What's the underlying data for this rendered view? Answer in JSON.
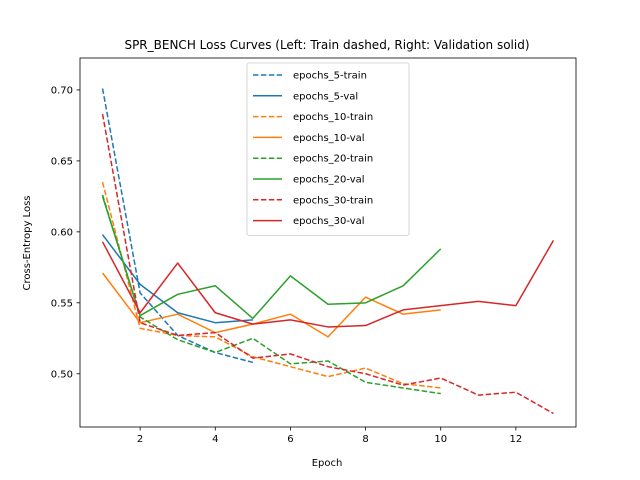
{
  "chart_data": {
    "type": "line",
    "title": "SPR_BENCH Loss Curves (Left: Train dashed, Right: Validation solid)",
    "xlabel": "Epoch",
    "ylabel": "Cross-Entropy Loss",
    "xlim": [
      0.4,
      13.6
    ],
    "ylim": [
      0.4625,
      0.7225
    ],
    "xticks": [
      2,
      4,
      6,
      8,
      10,
      12
    ],
    "yticks": [
      0.5,
      0.55,
      0.6,
      0.65,
      0.7
    ],
    "ytick_labels": [
      "0.50",
      "0.55",
      "0.60",
      "0.65",
      "0.70"
    ],
    "grid": false,
    "legend_position": "top-center",
    "series": [
      {
        "name": "epochs_5-train",
        "color": "#1f77b4",
        "style": "dashed",
        "x": [
          1,
          2,
          3,
          4,
          5
        ],
        "y": [
          0.701,
          0.557,
          0.527,
          0.515,
          0.508
        ]
      },
      {
        "name": "epochs_5-val",
        "color": "#1f77b4",
        "style": "solid",
        "x": [
          1,
          2,
          3,
          4,
          5
        ],
        "y": [
          0.598,
          0.563,
          0.543,
          0.536,
          0.538
        ]
      },
      {
        "name": "epochs_10-train",
        "color": "#ff7f0e",
        "style": "dashed",
        "x": [
          1,
          2,
          3,
          4,
          5,
          6,
          7,
          8,
          9,
          10
        ],
        "y": [
          0.635,
          0.532,
          0.527,
          0.526,
          0.512,
          0.505,
          0.498,
          0.504,
          0.493,
          0.49
        ]
      },
      {
        "name": "epochs_10-val",
        "color": "#ff7f0e",
        "style": "solid",
        "x": [
          1,
          2,
          3,
          4,
          5,
          6,
          7,
          8,
          9,
          10
        ],
        "y": [
          0.571,
          0.536,
          0.542,
          0.529,
          0.535,
          0.542,
          0.526,
          0.554,
          0.542,
          0.545
        ]
      },
      {
        "name": "epochs_20-train",
        "color": "#2ca02c",
        "style": "dashed",
        "x": [
          1,
          2,
          3,
          4,
          5,
          6,
          7,
          8,
          9,
          10
        ],
        "y": [
          0.626,
          0.54,
          0.524,
          0.515,
          0.525,
          0.507,
          0.509,
          0.494,
          0.49,
          0.486
        ]
      },
      {
        "name": "epochs_20-val",
        "color": "#2ca02c",
        "style": "solid",
        "x": [
          1,
          2,
          3,
          4,
          5,
          6,
          7,
          8,
          9,
          10
        ],
        "y": [
          0.625,
          0.541,
          0.556,
          0.562,
          0.539,
          0.569,
          0.549,
          0.55,
          0.562,
          0.588
        ]
      },
      {
        "name": "epochs_30-train",
        "color": "#d62728",
        "style": "dashed",
        "x": [
          1,
          2,
          3,
          4,
          5,
          6,
          7,
          8,
          9,
          10,
          11,
          12,
          13
        ],
        "y": [
          0.683,
          0.536,
          0.527,
          0.529,
          0.511,
          0.514,
          0.505,
          0.5,
          0.492,
          0.497,
          0.485,
          0.487,
          0.472
        ]
      },
      {
        "name": "epochs_30-val",
        "color": "#d62728",
        "style": "solid",
        "x": [
          1,
          2,
          3,
          4,
          5,
          6,
          7,
          8,
          9,
          10,
          11,
          12,
          13
        ],
        "y": [
          0.593,
          0.543,
          0.578,
          0.543,
          0.535,
          0.538,
          0.533,
          0.534,
          0.545,
          0.548,
          0.551,
          0.548,
          0.594
        ]
      }
    ]
  }
}
